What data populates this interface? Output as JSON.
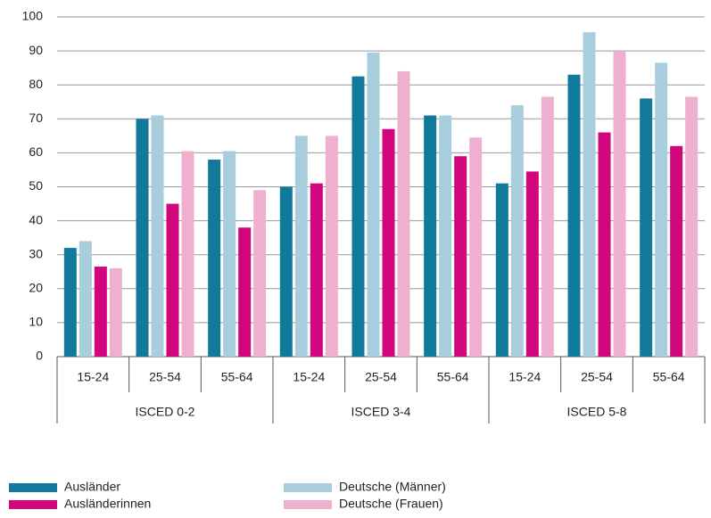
{
  "chart_data": {
    "type": "bar",
    "categories": [
      "15-24",
      "25-54",
      "55-64",
      "15-24",
      "25-54",
      "55-64",
      "15-24",
      "25-54",
      "55-64"
    ],
    "groups": [
      "ISCED 0-2",
      "ISCED 3-4",
      "ISCED 5-8"
    ],
    "series": [
      {
        "name": "Ausländer",
        "color": "#11799a",
        "values": [
          32,
          70,
          58,
          50,
          82.5,
          71,
          51,
          83,
          76
        ]
      },
      {
        "name": "Deutsche (Männer)",
        "color": "#a8cedd",
        "values": [
          34,
          71,
          60.5,
          65,
          89.5,
          71,
          74,
          95.5,
          86.5
        ]
      },
      {
        "name": "Ausländerinnen",
        "color": "#d1057c",
        "values": [
          26.5,
          45,
          38,
          51,
          67,
          59,
          54.5,
          66,
          62
        ]
      },
      {
        "name": "Deutsche (Frauen)",
        "color": "#eeb0ce",
        "values": [
          26,
          60.5,
          49,
          65,
          84,
          64.5,
          76.5,
          90,
          76.5
        ]
      }
    ],
    "ylim": [
      0,
      100
    ],
    "yticks": [
      0,
      10,
      20,
      30,
      40,
      50,
      60,
      70,
      80,
      90,
      100
    ],
    "grid": true
  }
}
